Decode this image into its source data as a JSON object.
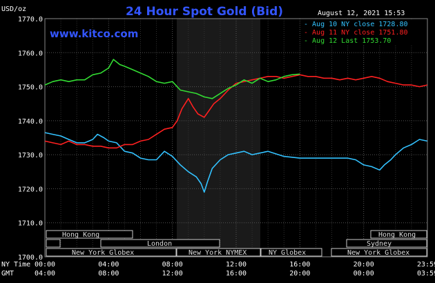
{
  "header": {
    "unit_label": "USD/oz",
    "title": "24 Hour Spot Gold (Bid)",
    "site": "www.kitco.com",
    "timestamp": "August 12, 2021 15:53"
  },
  "legend": [
    {
      "text": "- Aug 10 NY close 1728.80",
      "color": "#33c2ff"
    },
    {
      "text": "- Aug 11 NY close 1751.80",
      "color": "#ff2020"
    },
    {
      "text": "- Aug 12 Last 1753.70",
      "color": "#33dd33"
    }
  ],
  "timezones": {
    "row1": [
      "Hong Kong",
      "Hong Kong"
    ],
    "row2": [
      "London",
      "Sydney"
    ],
    "row3": [
      "New York Globex",
      "New York NYMEX",
      "NY Globex",
      "New York Globex"
    ]
  },
  "axis_labels": {
    "ny_time": "NY Time",
    "gmt": "GMT"
  },
  "chart_data": {
    "type": "line",
    "title": "24 Hour Spot Gold (Bid)",
    "ylabel": "USD/oz",
    "ylim": [
      1700,
      1770
    ],
    "yticks": [
      "1770.0",
      "1760.0",
      "1750.0",
      "1740.0",
      "1730.0",
      "1720.0",
      "1710.0",
      "1700.0"
    ],
    "xlim": [
      0,
      24
    ],
    "xticks_ny": [
      "00:00",
      "04:00",
      "08:00",
      "12:00",
      "16:00",
      "20:00",
      "23:59"
    ],
    "xticks_gmt": [
      "04:00",
      "08:00",
      "12:00",
      "16:00",
      "20:00",
      "00:00",
      "03:59"
    ],
    "grid": true,
    "legend_position": "top-right",
    "series": [
      {
        "name": "Aug 10 NY close 1728.80",
        "color": "#33c2ff",
        "x": [
          0,
          0.5,
          1,
          1.5,
          2,
          2.5,
          3,
          3.3,
          3.7,
          4,
          4.5,
          5,
          5.5,
          6,
          6.5,
          7,
          7.5,
          8,
          8.5,
          9,
          9.5,
          9.8,
          10,
          10.2,
          10.5,
          11,
          11.5,
          12,
          12.5,
          13,
          13.5,
          14,
          15,
          16,
          17,
          18,
          19,
          19.5,
          20,
          20.5,
          21,
          21.3,
          21.7,
          22,
          22.5,
          23,
          23.5,
          23.99
        ],
        "y": [
          1736.5,
          1736.0,
          1735.5,
          1734.5,
          1733.5,
          1733.5,
          1734.5,
          1736.0,
          1735.0,
          1734.0,
          1733.5,
          1731.0,
          1730.5,
          1729.0,
          1728.5,
          1728.5,
          1731.0,
          1729.5,
          1727.0,
          1725.0,
          1723.5,
          1721.5,
          1719.0,
          1722.0,
          1726.0,
          1728.5,
          1730.0,
          1730.5,
          1731.0,
          1730.0,
          1730.5,
          1731.0,
          1729.5,
          1729.0,
          1729.0,
          1729.0,
          1729.0,
          1728.5,
          1727.0,
          1726.5,
          1725.5,
          1727.0,
          1728.5,
          1730.0,
          1732.0,
          1733.0,
          1734.5,
          1734.0
        ]
      },
      {
        "name": "Aug 11 NY close 1751.80",
        "color": "#ff2020",
        "x": [
          0,
          0.5,
          1,
          1.5,
          2,
          2.5,
          3,
          3.5,
          4,
          4.5,
          5,
          5.5,
          6,
          6.5,
          7,
          7.5,
          8,
          8.3,
          8.6,
          9,
          9.3,
          9.6,
          10,
          10.3,
          10.6,
          11,
          11.5,
          12,
          12.5,
          13,
          13.5,
          14,
          14.5,
          15,
          15.5,
          16,
          16.5,
          17,
          17.5,
          18,
          18.5,
          19,
          19.5,
          20,
          20.5,
          21,
          21.5,
          22,
          22.5,
          23,
          23.5,
          23.99
        ],
        "y": [
          1734.0,
          1733.5,
          1733.0,
          1734.0,
          1733.0,
          1733.0,
          1732.5,
          1732.5,
          1732.0,
          1732.0,
          1733.0,
          1733.0,
          1734.0,
          1734.5,
          1736.0,
          1737.5,
          1738.0,
          1740.0,
          1743.5,
          1746.5,
          1744.0,
          1742.0,
          1741.0,
          1743.0,
          1745.0,
          1746.5,
          1749.0,
          1751.0,
          1751.5,
          1752.0,
          1752.5,
          1753.0,
          1753.0,
          1752.5,
          1753.0,
          1753.5,
          1753.0,
          1753.0,
          1752.5,
          1752.5,
          1752.0,
          1752.5,
          1752.0,
          1752.5,
          1753.0,
          1752.5,
          1751.5,
          1751.0,
          1750.5,
          1750.5,
          1750.0,
          1750.5
        ]
      },
      {
        "name": "Aug 12 Last 1753.70",
        "color": "#33dd33",
        "x": [
          0,
          0.5,
          1,
          1.5,
          2,
          2.5,
          3,
          3.5,
          4,
          4.3,
          4.7,
          5,
          5.5,
          6,
          6.5,
          7,
          7.5,
          8,
          8.5,
          9,
          9.5,
          10,
          10.5,
          11,
          11.5,
          12,
          12.5,
          13,
          13.5,
          14,
          14.5,
          15,
          15.5,
          16
        ],
        "y": [
          1750.5,
          1751.5,
          1752.0,
          1751.5,
          1752.0,
          1752.0,
          1753.5,
          1754.0,
          1755.5,
          1758.0,
          1756.5,
          1756.0,
          1755.0,
          1754.0,
          1753.0,
          1751.5,
          1751.0,
          1751.5,
          1749.0,
          1748.5,
          1748.0,
          1747.0,
          1746.5,
          1748.0,
          1749.5,
          1750.5,
          1752.0,
          1751.0,
          1752.5,
          1751.5,
          1752.0,
          1753.0,
          1753.5,
          1753.7
        ]
      }
    ]
  }
}
